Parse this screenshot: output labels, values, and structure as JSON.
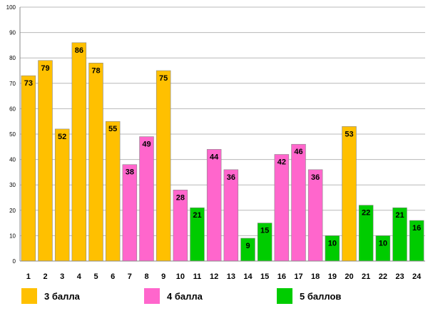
{
  "chart_data": {
    "type": "bar",
    "categories": [
      "1",
      "2",
      "3",
      "4",
      "5",
      "6",
      "7",
      "8",
      "9",
      "10",
      "11",
      "12",
      "13",
      "14",
      "15",
      "16",
      "17",
      "18",
      "19",
      "20",
      "21",
      "22",
      "23",
      "24"
    ],
    "values": [
      73,
      79,
      52,
      86,
      78,
      55,
      38,
      49,
      75,
      28,
      21,
      44,
      36,
      9,
      15,
      42,
      46,
      36,
      10,
      53,
      22,
      10,
      21,
      16
    ],
    "groups": [
      "3 балла",
      "3 балла",
      "3 балла",
      "3 балла",
      "3 балла",
      "3 балла",
      "4 балла",
      "4 балла",
      "3 балла",
      "4 балла",
      "5 баллов",
      "4 балла",
      "4 балла",
      "5 баллов",
      "5 баллов",
      "4 балла",
      "4 балла",
      "4 балла",
      "5 баллов",
      "3 балла",
      "5 баллов",
      "5 баллов",
      "5 баллов",
      "5 баллов"
    ],
    "ylim": [
      0,
      100
    ],
    "yticks": [
      0,
      10,
      20,
      30,
      40,
      50,
      60,
      70,
      80,
      90,
      100
    ],
    "grid": true,
    "legend": [
      {
        "label": "3 балла",
        "color": "#FFC000"
      },
      {
        "label": "4 балла",
        "color": "#FF66CC"
      },
      {
        "label": "5 баллов",
        "color": "#00CC00"
      }
    ]
  }
}
